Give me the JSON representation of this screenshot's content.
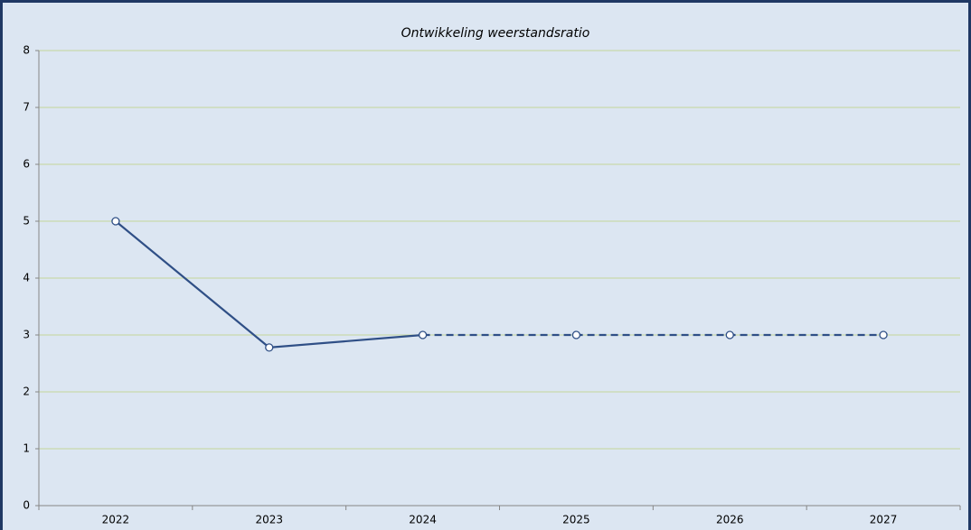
{
  "chart_data": {
    "type": "line",
    "title": "Ontwikkeling weerstandsratio",
    "categories": [
      "2022",
      "2023",
      "2024",
      "2025",
      "2026",
      "2027"
    ],
    "values": [
      5,
      2.78,
      3,
      3,
      3,
      3
    ],
    "segment_styles": [
      "solid",
      "solid",
      "dashed",
      "dashed",
      "dashed"
    ],
    "color": "#2f4f86",
    "ylim": [
      0,
      8
    ],
    "yticks": [
      0,
      1,
      2,
      3,
      4,
      5,
      6,
      7,
      8
    ],
    "grid": true
  }
}
